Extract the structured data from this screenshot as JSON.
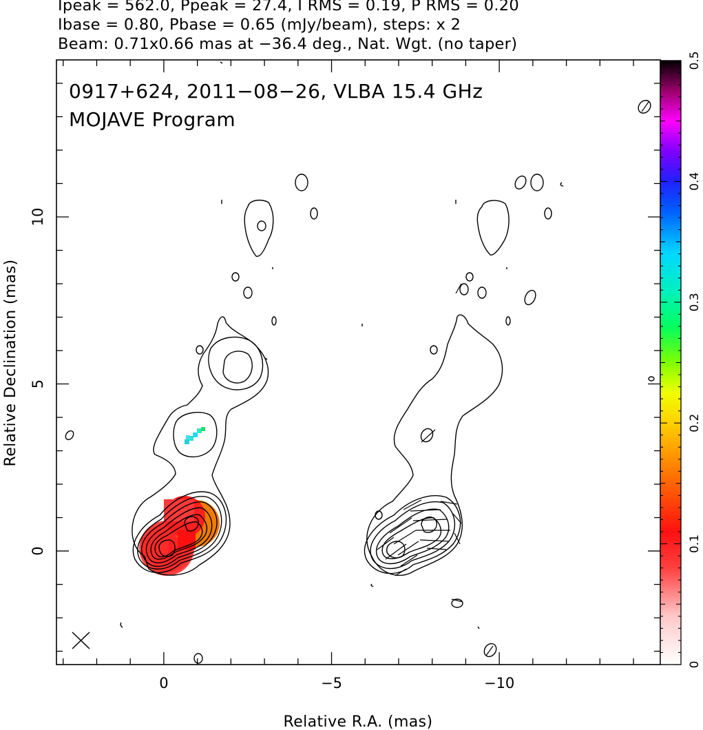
{
  "header": {
    "line1": "Ipeak = 562.0, Ppeak = 27.4, I RMS = 0.19, P RMS = 0.20",
    "line2": "Ibase = 0.80, Pbase = 0.65 (mJy/beam), steps: x 2",
    "line3": "Beam: 0.71x0.66 mas at −36.4 deg., Nat. Wgt. (no taper)"
  },
  "chart_data": {
    "type": "heatmap",
    "title": "0917+624, 2011−08−26, VLBA 15.4 GHz",
    "subtitle": "MOJAVE Program",
    "xlabel": "Relative R.A. (mas)",
    "ylabel": "Relative Declination (mas)",
    "xlim": [
      3.2,
      -14.8
    ],
    "ylim": [
      -3.4,
      14.7
    ],
    "x_ticks": [
      {
        "v": 0,
        "label": "0"
      },
      {
        "v": -5,
        "label": "−5"
      },
      {
        "v": -10,
        "label": "−10"
      }
    ],
    "y_ticks": [
      {
        "v": 0,
        "label": "0"
      },
      {
        "v": 5,
        "label": "5"
      },
      {
        "v": 10,
        "label": "10"
      }
    ],
    "colorbar": {
      "range": [
        0,
        0.5
      ],
      "ticks": [
        {
          "v": 0,
          "label": "0"
        },
        {
          "v": 0.1,
          "label": "0.1"
        },
        {
          "v": 0.2,
          "label": "0.2"
        },
        {
          "v": 0.3,
          "label": "0.3"
        },
        {
          "v": 0.4,
          "label": "0.4"
        },
        {
          "v": 0.5,
          "label": "0.5"
        }
      ]
    },
    "panels": [
      {
        "name": "Stokes I contours with fractional polarization",
        "x_offset": 0
      },
      {
        "name": "Stokes I contours with EVPA ticks",
        "x_offset": -7.9
      }
    ],
    "core": {
      "x": 0.0,
      "y": 0.0
    },
    "jet_component": {
      "x": -0.75,
      "y": 0.8
    },
    "polarization_patches": [
      {
        "region": "core jet",
        "fractional_pol_range": [
          0.08,
          0.13
        ]
      },
      {
        "region": "knot near (-0.9, 3.4)",
        "fractional_pol_range": [
          0.27,
          0.32
        ]
      }
    ],
    "grid": false
  },
  "colors": {
    "frame": "#000000",
    "contour": "#000000",
    "pol_red": "#ff2020",
    "pol_orange": "#f08a00",
    "pol_cyan": "#20d8d0"
  }
}
